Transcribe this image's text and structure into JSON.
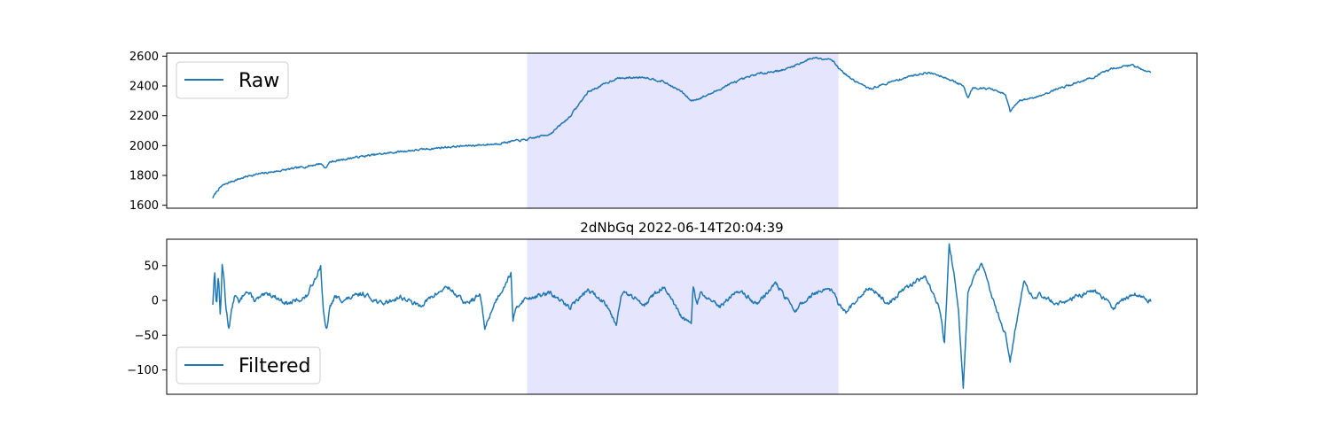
{
  "figure": {
    "background": "#ffffff",
    "line_color": "#1f77b4",
    "highlight_color": "#e5e5fd"
  },
  "chart_data": [
    {
      "type": "line",
      "title": "",
      "xlabel": "",
      "ylabel": "",
      "ylim": [
        1580,
        2620
      ],
      "yticks": [
        1600,
        1800,
        2000,
        2200,
        2400,
        2600
      ],
      "xlim": [
        0,
        1000
      ],
      "xticks_visible": false,
      "grid": false,
      "legend_position": "upper left",
      "highlight_span": [
        335,
        667
      ],
      "series": [
        {
          "name": "Raw",
          "color": "#1f77b4",
          "noise": 12,
          "x": [
            0,
            5,
            10,
            20,
            40,
            60,
            80,
            100,
            115,
            120,
            125,
            150,
            200,
            250,
            300,
            320,
            335,
            360,
            380,
            400,
            430,
            460,
            480,
            500,
            510,
            520,
            535,
            550,
            580,
            610,
            640,
            660,
            667,
            680,
            700,
            720,
            740,
            760,
            770,
            780,
            790,
            800,
            805,
            810,
            830,
            845,
            850,
            860,
            880,
            900,
            920,
            940,
            960,
            980,
            1000
          ],
          "y": [
            1650,
            1700,
            1730,
            1760,
            1800,
            1820,
            1840,
            1860,
            1880,
            1850,
            1890,
            1920,
            1960,
            1990,
            2010,
            2030,
            2040,
            2080,
            2190,
            2360,
            2450,
            2460,
            2430,
            2360,
            2300,
            2320,
            2360,
            2410,
            2480,
            2510,
            2590,
            2580,
            2520,
            2450,
            2380,
            2420,
            2460,
            2490,
            2480,
            2460,
            2430,
            2400,
            2320,
            2390,
            2380,
            2340,
            2230,
            2300,
            2330,
            2380,
            2420,
            2460,
            2520,
            2540,
            2490
          ]
        }
      ]
    },
    {
      "type": "line",
      "title": "2dNbGq 2022-06-14T20:04:39",
      "xlabel": "",
      "ylabel": "",
      "ylim": [
        -135,
        88
      ],
      "yticks": [
        -100,
        -50,
        0,
        50
      ],
      "xlim": [
        0,
        1000
      ],
      "xticks_visible": false,
      "grid": false,
      "legend_position": "lower left",
      "highlight_span": [
        335,
        667
      ],
      "series": [
        {
          "name": "Filtered",
          "color": "#1f77b4",
          "noise": 6,
          "x": [
            0,
            2,
            4,
            6,
            8,
            10,
            12,
            14,
            17,
            20,
            24,
            28,
            35,
            45,
            60,
            80,
            100,
            115,
            118,
            121,
            125,
            130,
            140,
            160,
            180,
            200,
            220,
            250,
            270,
            285,
            290,
            300,
            318,
            320,
            324,
            330,
            340,
            360,
            380,
            400,
            420,
            430,
            435,
            440,
            460,
            480,
            500,
            510,
            512,
            516,
            520,
            540,
            560,
            580,
            600,
            620,
            640,
            660,
            667,
            675,
            680,
            700,
            720,
            740,
            760,
            775,
            780,
            785,
            790,
            795,
            800,
            805,
            810,
            815,
            820,
            825,
            835,
            845,
            850,
            858,
            865,
            875,
            880,
            900,
            920,
            940,
            960,
            980,
            1000
          ],
          "y": [
            -5,
            45,
            -10,
            40,
            -25,
            50,
            30,
            -10,
            -40,
            -15,
            10,
            -5,
            15,
            0,
            10,
            -5,
            5,
            50,
            -20,
            -45,
            -10,
            5,
            0,
            10,
            -5,
            5,
            -8,
            20,
            -5,
            8,
            -40,
            -5,
            40,
            -30,
            -10,
            0,
            5,
            10,
            -10,
            15,
            -5,
            -35,
            8,
            10,
            -5,
            20,
            -25,
            -35,
            20,
            -5,
            10,
            -10,
            15,
            -5,
            25,
            -15,
            10,
            15,
            -5,
            -20,
            -10,
            20,
            -5,
            20,
            35,
            -15,
            -60,
            80,
            40,
            -20,
            -125,
            10,
            30,
            45,
            50,
            30,
            -10,
            -50,
            -85,
            -20,
            30,
            0,
            10,
            -5,
            5,
            15,
            -10,
            10,
            0
          ]
        }
      ]
    }
  ]
}
